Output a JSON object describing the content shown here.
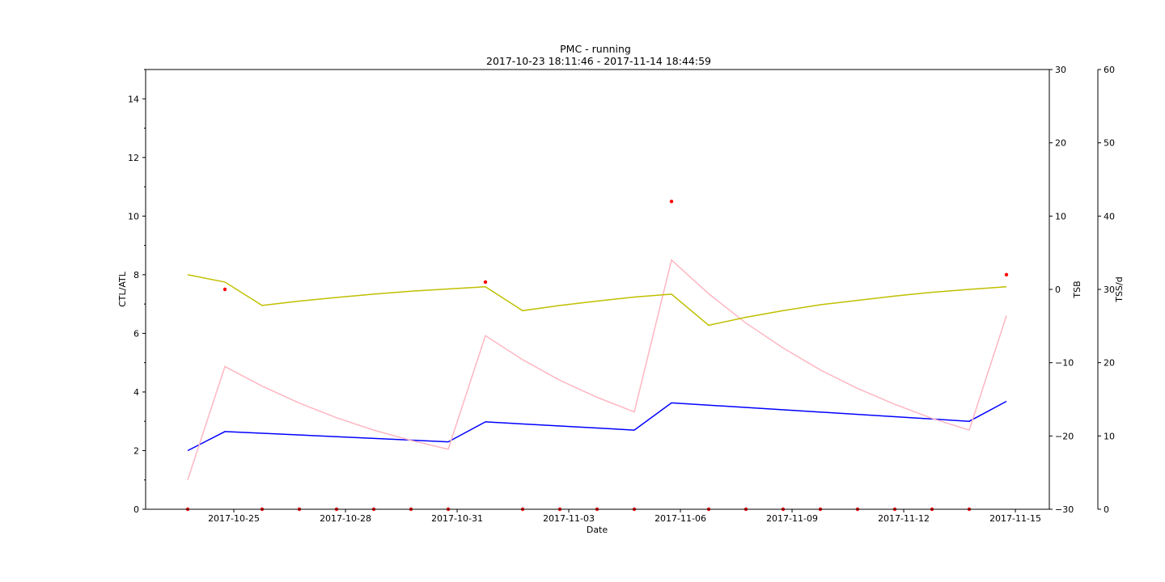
{
  "chart_data": {
    "type": "line",
    "title": "PMC - running",
    "subtitle": "2017-10-23 18:11:46 - 2017-11-14 18:44:59",
    "xlabel": "Date",
    "ylabel_left": "CTL/ATL",
    "ylabel_right1": "TSB",
    "ylabel_right2": "TSS/d",
    "x_ticks": [
      "2017-10-25",
      "2017-10-28",
      "2017-10-31",
      "2017-11-03",
      "2017-11-06",
      "2017-11-09",
      "2017-11-12",
      "2017-11-15"
    ],
    "y_left": {
      "lim": [
        0,
        15
      ],
      "ticks": [
        0,
        2,
        4,
        6,
        8,
        10,
        12,
        14
      ]
    },
    "y_right1": {
      "lim": [
        -30,
        30
      ],
      "ticks": [
        -30,
        -20,
        -10,
        0,
        10,
        20,
        30
      ]
    },
    "y_right2": {
      "lim": [
        0,
        60
      ],
      "ticks": [
        0,
        10,
        20,
        30,
        40,
        50,
        60
      ]
    },
    "x": [
      "2017-10-23 18:11",
      "2017-10-24 18:11",
      "2017-10-25 18:11",
      "2017-10-26 18:11",
      "2017-10-27 18:11",
      "2017-10-28 18:11",
      "2017-10-29 18:11",
      "2017-10-30 18:11",
      "2017-10-31 18:11",
      "2017-11-01 18:11",
      "2017-11-02 18:11",
      "2017-11-03 18:11",
      "2017-11-04 18:11",
      "2017-11-05 18:11",
      "2017-11-06 18:11",
      "2017-11-07 18:11",
      "2017-11-08 18:11",
      "2017-11-09 18:11",
      "2017-11-10 18:11",
      "2017-11-11 18:11",
      "2017-11-12 18:11",
      "2017-11-13 18:11",
      "2017-11-14 18:11",
      "2017-11-15 18:11"
    ],
    "series": [
      {
        "axis": "left",
        "color": "#0000ff",
        "points": [
          [
            0,
            2.0
          ],
          [
            1,
            2.65
          ],
          [
            7,
            2.3
          ],
          [
            8,
            2.98
          ],
          [
            12,
            2.7
          ],
          [
            13,
            3.63
          ],
          [
            21,
            3.0
          ],
          [
            22,
            3.68
          ]
        ]
      },
      {
        "axis": "left",
        "color": "#ffb6c1",
        "points": [
          [
            0,
            1.0
          ],
          [
            1,
            4.87
          ],
          [
            2,
            4.2
          ],
          [
            3,
            3.62
          ],
          [
            4,
            3.12
          ],
          [
            5,
            2.7
          ],
          [
            6,
            2.35
          ],
          [
            7,
            2.05
          ],
          [
            8,
            5.92
          ],
          [
            9,
            5.1
          ],
          [
            10,
            4.4
          ],
          [
            11,
            3.82
          ],
          [
            12,
            3.32
          ],
          [
            13,
            8.5
          ],
          [
            14,
            7.35
          ],
          [
            15,
            6.35
          ],
          [
            16,
            5.5
          ],
          [
            17,
            4.75
          ],
          [
            18,
            4.12
          ],
          [
            19,
            3.58
          ],
          [
            20,
            3.1
          ],
          [
            21,
            2.7
          ],
          [
            22,
            6.6
          ]
        ]
      },
      {
        "axis": "right1",
        "color": "#bfbf00",
        "points": [
          [
            0,
            2.0
          ],
          [
            1,
            1.0
          ],
          [
            2,
            -2.2
          ],
          [
            3,
            -1.6
          ],
          [
            4,
            -1.1
          ],
          [
            5,
            -0.65
          ],
          [
            6,
            -0.25
          ],
          [
            7,
            0.05
          ],
          [
            8,
            0.35
          ],
          [
            9,
            -2.9
          ],
          [
            10,
            -2.2
          ],
          [
            11,
            -1.6
          ],
          [
            12,
            -1.05
          ],
          [
            13,
            -0.65
          ],
          [
            14,
            -4.9
          ],
          [
            15,
            -3.8
          ],
          [
            16,
            -2.9
          ],
          [
            17,
            -2.1
          ],
          [
            18,
            -1.5
          ],
          [
            19,
            -0.9
          ],
          [
            20,
            -0.4
          ],
          [
            21,
            0.0
          ],
          [
            22,
            0.35
          ]
        ]
      }
    ],
    "tss_points": {
      "axis": "right2",
      "color": "#ff0000",
      "points": [
        [
          0,
          0
        ],
        [
          1,
          30
        ],
        [
          2,
          0
        ],
        [
          3,
          0
        ],
        [
          4,
          0
        ],
        [
          5,
          0
        ],
        [
          6,
          0
        ],
        [
          7,
          0
        ],
        [
          8,
          31
        ],
        [
          9,
          0
        ],
        [
          10,
          0
        ],
        [
          11,
          0
        ],
        [
          12,
          0
        ],
        [
          13,
          42
        ],
        [
          14,
          0
        ],
        [
          15,
          0
        ],
        [
          16,
          0
        ],
        [
          17,
          0
        ],
        [
          18,
          0
        ],
        [
          19,
          0
        ],
        [
          20,
          0
        ],
        [
          21,
          0
        ],
        [
          22,
          32
        ]
      ]
    }
  }
}
